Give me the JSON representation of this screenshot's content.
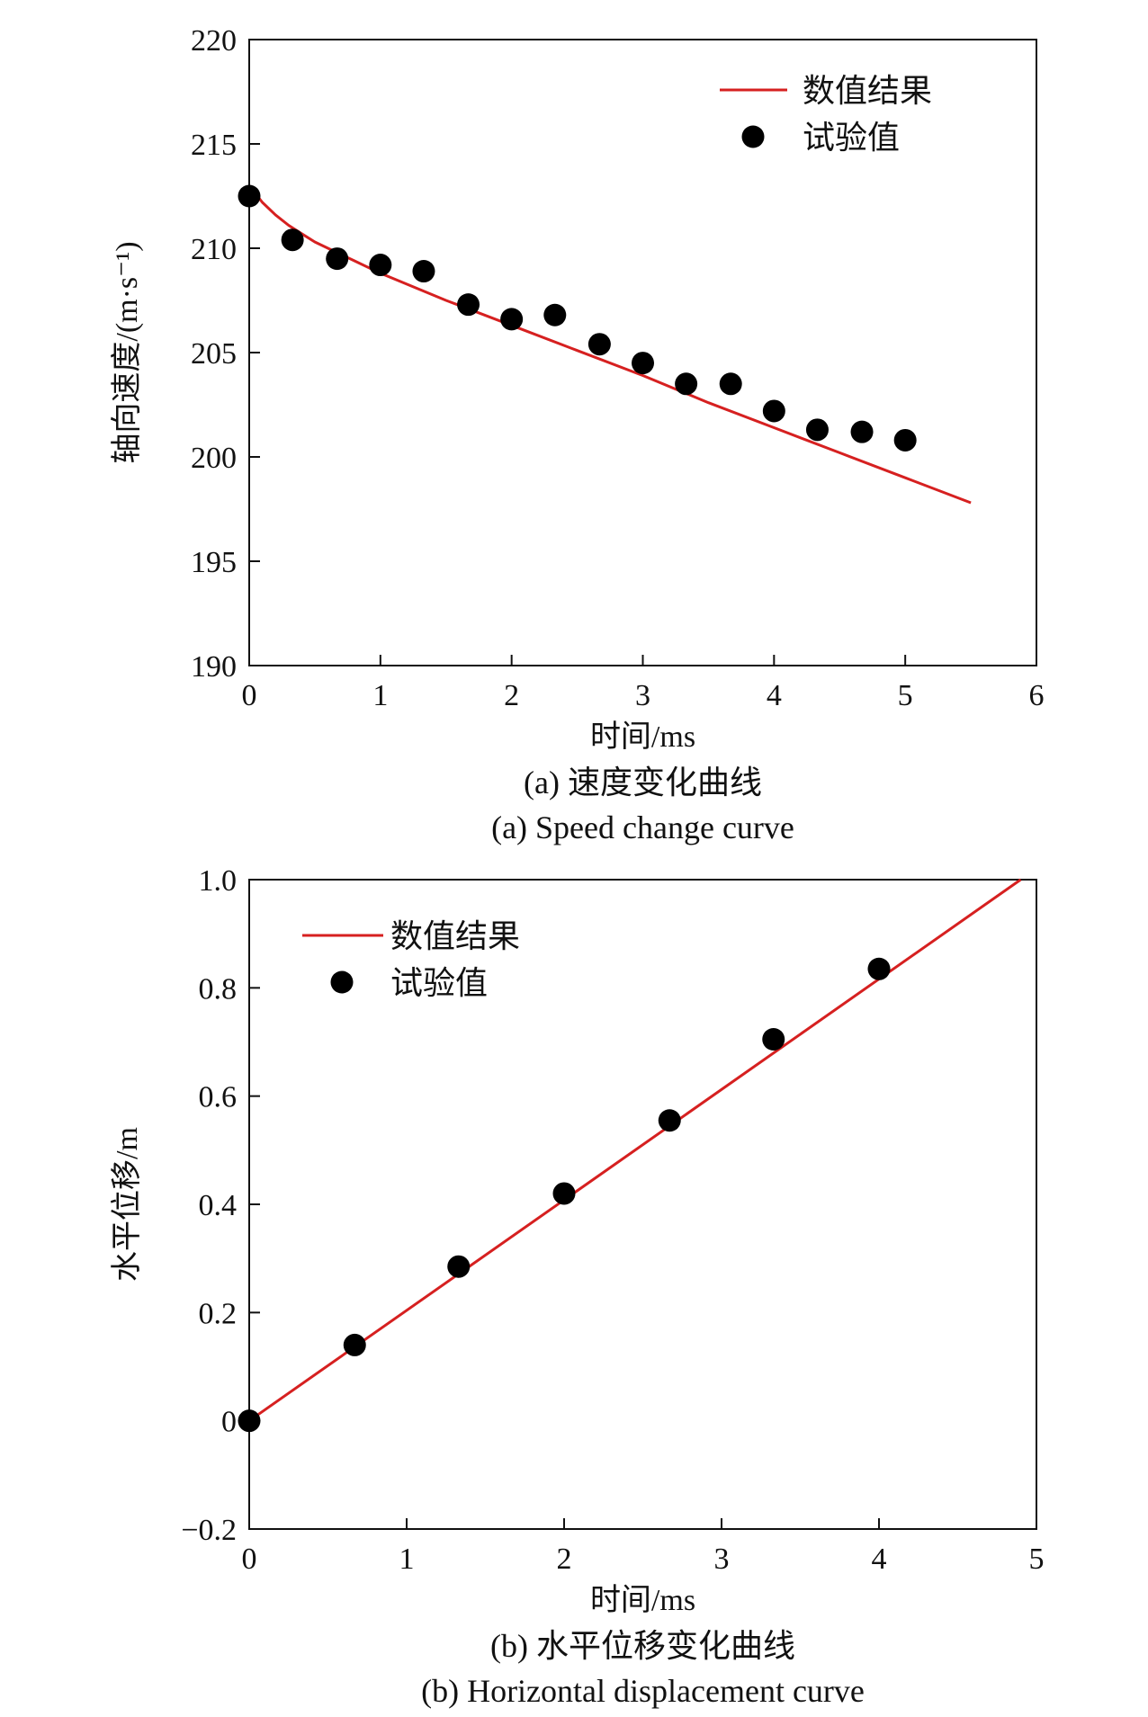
{
  "colors": {
    "line": "#d62020",
    "points": "#000000",
    "axis": "#111111"
  },
  "chart_data": [
    {
      "type": "line+scatter",
      "xlabel": "时间/ms",
      "ylabel": "轴向速度/(m·s⁻¹)",
      "caption_cn": "(a) 速度变化曲线",
      "caption_en": "(a) Speed change curve",
      "xlim": [
        0,
        6
      ],
      "ylim": [
        190,
        220
      ],
      "xticks": [
        0,
        1,
        2,
        3,
        4,
        5,
        6
      ],
      "yticks": [
        190,
        195,
        200,
        205,
        210,
        215,
        220
      ],
      "legend_position": "top-right",
      "series": [
        {
          "name": "数值结果",
          "kind": "line",
          "x": [
            0,
            0.1,
            0.2,
            0.3,
            0.4,
            0.5,
            0.6,
            0.8,
            1.0,
            1.5,
            2.0,
            2.5,
            3.0,
            3.5,
            4.0,
            4.5,
            5.0,
            5.5
          ],
          "y": [
            213.0,
            212.2,
            211.6,
            211.1,
            210.7,
            210.3,
            210.0,
            209.4,
            208.8,
            207.5,
            206.3,
            205.1,
            203.9,
            202.6,
            201.4,
            200.2,
            199.0,
            197.8
          ]
        },
        {
          "name": "试验值",
          "kind": "scatter",
          "x": [
            0,
            0.33,
            0.67,
            1.0,
            1.33,
            1.67,
            2.0,
            2.33,
            2.67,
            3.0,
            3.33,
            3.67,
            4.0,
            4.33,
            4.67,
            5.0
          ],
          "y": [
            212.5,
            210.4,
            209.5,
            209.2,
            208.9,
            207.3,
            206.6,
            206.8,
            205.4,
            204.5,
            203.5,
            203.5,
            202.2,
            201.3,
            201.2,
            200.8
          ]
        }
      ]
    },
    {
      "type": "line+scatter",
      "xlabel": "时间/ms",
      "ylabel": "水平位移/m",
      "caption_cn": "(b) 水平位移变化曲线",
      "caption_en": "(b) Horizontal displacement curve",
      "xlim": [
        0,
        5
      ],
      "ylim": [
        -0.2,
        1.0
      ],
      "xticks": [
        0,
        1,
        2,
        3,
        4,
        5
      ],
      "yticks": [
        -0.2,
        0,
        0.2,
        0.4,
        0.6,
        0.8,
        1.0
      ],
      "ytick_labels": [
        "−0.2",
        "0",
        "0.2",
        "0.4",
        "0.6",
        "0.8",
        "1.0"
      ],
      "legend_position": "top-left",
      "series": [
        {
          "name": "数值结果",
          "kind": "line",
          "x": [
            0,
            4.9
          ],
          "y": [
            0,
            1.0
          ]
        },
        {
          "name": "试验值",
          "kind": "scatter",
          "x": [
            0,
            0.67,
            1.33,
            2.0,
            2.67,
            3.33,
            4.0
          ],
          "y": [
            0,
            0.14,
            0.285,
            0.42,
            0.555,
            0.705,
            0.835
          ]
        }
      ]
    }
  ]
}
